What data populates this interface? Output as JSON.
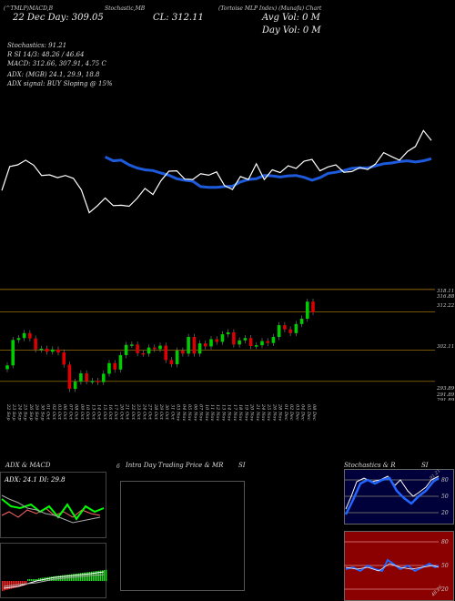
{
  "header": {
    "row1": [
      "(Tortoise MLP Index) (Munafa)  Chart",
      "Tortoise MLP Index Munafa Chart",
      "MACD,B",
      "Stochastic,MB"
    ],
    "ticker": "(^TMLP)",
    "date_line": "22 Dec  Day: 309.05",
    "close_line": "CL: 312.11",
    "avg_vol": "Avg Vol: 0  M",
    "day_vol": "Day Vol: 0  M"
  },
  "indicators": {
    "stochastics": "Stochastics: 91.21",
    "rsi": "R    SI 14/3: 48.26  / 46.64",
    "macd": "MACD: 312.66,  307.91,  4.75 C",
    "adx": "ADX:                    (MGB) 24.1,  29.9,  18.8",
    "adx_signal": "ADX  signal:                          BUY Sloping @ 15%"
  },
  "price_labels": [
    "318.11",
    "316.88",
    "312.22",
    "302.11",
    "293.89",
    "291.89",
    "291.89",
    "293.89"
  ],
  "dates": [
    "22 Sep",
    "23 Sep",
    "24 Sep",
    "25 Sep",
    "26 Sep",
    "29 Sep",
    "30 Sep",
    "01 Oct",
    "02 Oct",
    "03 Oct",
    "06 Oct",
    "07 Oct",
    "08 Oct",
    "09 Oct",
    "10 Oct",
    "13 Oct",
    "14 Oct",
    "15 Oct",
    "16 Oct",
    "17 Oct",
    "20 Oct",
    "21 Oct",
    "22 Oct",
    "23 Oct",
    "24 Oct",
    "27 Oct",
    "28 Oct",
    "29 Oct",
    "30 Oct",
    "31 Oct",
    "03 Nov",
    "04 Nov",
    "05 Nov",
    "06 Nov",
    "07 Nov",
    "10 Nov",
    "11 Nov",
    "12 Nov",
    "13 Nov",
    "14 Nov",
    "17 Nov",
    "18 Nov",
    "19 Nov",
    "20 Nov",
    "21 Nov",
    "24 Nov",
    "25 Nov",
    "26 Nov",
    "28 Nov",
    "01 Dec",
    "02 Dec",
    "03 Dec",
    "04 Dec",
    "05 Dec",
    "08 Dec"
  ],
  "panels": {
    "adx_macd_title": "ADX  & MACD",
    "adx_line": "ADX: 24.1  DI: 29.8",
    "intraday_title": "Intra  Day Trading Price  & MR",
    "intraday_si": "SI",
    "stoch_title": "Stochastics & R",
    "stoch_si": "SI",
    "stoch_value": "91.21",
    "stoch_levels": [
      "80",
      "50",
      "20"
    ],
    "rsi_levels": [
      "80",
      "50",
      "20"
    ],
    "rsi_value": "48.26",
    "side_nums": [
      "0",
      "6"
    ]
  },
  "chart_data": {
    "type": "candlestick",
    "y_labels": [
      318.11,
      316.88,
      312.22,
      302.11,
      293.89,
      291.89
    ],
    "closes": [
      298.1,
      304.8,
      305.3,
      306.6,
      305.2,
      302.3,
      302.5,
      301.7,
      302.3,
      301.5,
      298.3,
      291.9,
      293.8,
      296.0,
      293.9,
      294.0,
      293.7,
      295.9,
      298.7,
      297.0,
      300.8,
      303.5,
      303.6,
      301.3,
      301.2,
      302.8,
      302.4,
      303.3,
      299.5,
      298.4,
      302.0,
      301.2,
      305.6,
      301.2,
      303.9,
      303.1,
      305.0,
      304.3,
      306.3,
      306.8,
      303.6,
      304.7,
      305.3,
      303.2,
      303.4,
      304.5,
      304.0,
      305.6,
      308.7,
      307.6,
      306.6,
      309.0,
      310.4,
      314.9,
      312.1
    ],
    "sma": [
      307.5,
      306.4,
      306.6,
      305.3,
      304.4,
      303.9,
      303.7,
      303.0,
      302.4,
      301.4,
      301.0,
      300.7,
      299.2,
      299.0,
      299.0,
      299.2,
      299.3,
      300.5,
      301.2,
      301.4,
      302.3,
      302.2,
      301.9,
      302.2,
      302.3,
      301.8,
      301.0,
      301.7,
      302.9,
      303.2,
      303.7,
      304.3,
      304.5,
      304.4,
      305.0,
      305.6,
      305.8,
      306.2,
      306.4,
      306.1,
      306.4,
      307.0
    ]
  },
  "colors": {
    "up": "#00cc00",
    "down": "#dd0000",
    "sma": "#1e5adc",
    "price_line": "#ffffff",
    "level_line": "#b8860b"
  }
}
